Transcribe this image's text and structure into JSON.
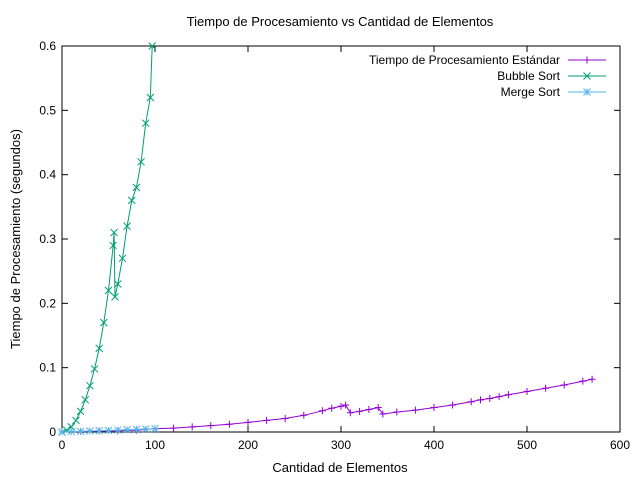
{
  "chart_data": {
    "type": "line",
    "title": "Tiempo de Procesamiento vs Cantidad de Elementos",
    "xlabel": "Cantidad de Elementos",
    "ylabel": "Tiempo de Procesamiento (segundos)",
    "xlim": [
      0,
      600
    ],
    "ylim": [
      0,
      0.6
    ],
    "x_ticks": [
      0,
      100,
      200,
      300,
      400,
      500,
      600
    ],
    "y_ticks": [
      0,
      0.1,
      0.2,
      0.3,
      0.4,
      0.5,
      0.6
    ],
    "x_tick_labels": [
      "0",
      "100",
      "200",
      "300",
      "400",
      "500",
      "600"
    ],
    "y_tick_labels": [
      "0",
      "0.1",
      "0.2",
      "0.3",
      "0.4",
      "0.5",
      "0.6"
    ],
    "grid": false,
    "legend_position": "top-right",
    "series": [
      {
        "name": "Tiempo de Procesamiento Estándar",
        "color": "#9400d3",
        "marker": "plus",
        "points": [
          [
            0,
            0.0
          ],
          [
            20,
            0.0008
          ],
          [
            40,
            0.0015
          ],
          [
            60,
            0.002
          ],
          [
            80,
            0.003
          ],
          [
            100,
            0.005
          ],
          [
            120,
            0.006
          ],
          [
            140,
            0.008
          ],
          [
            160,
            0.01
          ],
          [
            180,
            0.012
          ],
          [
            200,
            0.015
          ],
          [
            220,
            0.018
          ],
          [
            240,
            0.021
          ],
          [
            260,
            0.026
          ],
          [
            280,
            0.033
          ],
          [
            290,
            0.037
          ],
          [
            300,
            0.04
          ],
          [
            305,
            0.042
          ],
          [
            310,
            0.03
          ],
          [
            320,
            0.032
          ],
          [
            330,
            0.035
          ],
          [
            340,
            0.038
          ],
          [
            345,
            0.028
          ],
          [
            360,
            0.031
          ],
          [
            380,
            0.034
          ],
          [
            400,
            0.038
          ],
          [
            420,
            0.042
          ],
          [
            440,
            0.047
          ],
          [
            450,
            0.05
          ],
          [
            460,
            0.052
          ],
          [
            470,
            0.055
          ],
          [
            480,
            0.058
          ],
          [
            500,
            0.063
          ],
          [
            520,
            0.068
          ],
          [
            540,
            0.073
          ],
          [
            560,
            0.079
          ],
          [
            570,
            0.082
          ]
        ]
      },
      {
        "name": "Bubble Sort",
        "color": "#009e73",
        "marker": "cross",
        "points": [
          [
            0,
            0.0
          ],
          [
            5,
            0.003
          ],
          [
            10,
            0.008
          ],
          [
            15,
            0.018
          ],
          [
            20,
            0.032
          ],
          [
            25,
            0.05
          ],
          [
            30,
            0.072
          ],
          [
            35,
            0.098
          ],
          [
            40,
            0.13
          ],
          [
            45,
            0.17
          ],
          [
            50,
            0.22
          ],
          [
            55,
            0.29
          ],
          [
            56,
            0.31
          ],
          [
            57,
            0.21
          ],
          [
            60,
            0.23
          ],
          [
            65,
            0.27
          ],
          [
            70,
            0.32
          ],
          [
            75,
            0.36
          ],
          [
            80,
            0.38
          ],
          [
            85,
            0.42
          ],
          [
            90,
            0.48
          ],
          [
            95,
            0.52
          ],
          [
            97,
            0.6
          ]
        ]
      },
      {
        "name": "Merge Sort",
        "color": "#56b4e9",
        "marker": "star",
        "points": [
          [
            0,
            0.0
          ],
          [
            10,
            0.0005
          ],
          [
            20,
            0.001
          ],
          [
            30,
            0.0015
          ],
          [
            40,
            0.002
          ],
          [
            50,
            0.0025
          ],
          [
            60,
            0.003
          ],
          [
            70,
            0.0035
          ],
          [
            80,
            0.004
          ],
          [
            90,
            0.0045
          ],
          [
            100,
            0.005
          ]
        ]
      }
    ]
  }
}
